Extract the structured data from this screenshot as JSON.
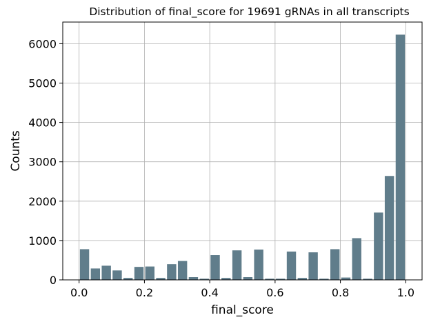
{
  "chart_data": {
    "type": "bar",
    "title": "Distribution of final_score for 19691 gRNAs in all transcripts",
    "xlabel": "final_score",
    "ylabel": "Counts",
    "xlim": [
      -0.05,
      1.05
    ],
    "ylim": [
      0,
      6550
    ],
    "grid": true,
    "bar_color": "#607d8b",
    "bin_width": 0.0333,
    "x_ticks": [
      0.0,
      0.2,
      0.4,
      0.6,
      0.8,
      1.0
    ],
    "x_tick_labels": [
      "0.0",
      "0.2",
      "0.4",
      "0.6",
      "0.8",
      "1.0"
    ],
    "y_ticks": [
      0,
      1000,
      2000,
      3000,
      4000,
      5000,
      6000
    ],
    "y_tick_labels": [
      "0",
      "1000",
      "2000",
      "3000",
      "4000",
      "5000",
      "6000"
    ],
    "bins": [
      0.0,
      0.0333,
      0.0667,
      0.1,
      0.1333,
      0.1667,
      0.2,
      0.2333,
      0.2667,
      0.3,
      0.3333,
      0.3667,
      0.4,
      0.4333,
      0.4667,
      0.5,
      0.5333,
      0.5667,
      0.6,
      0.6333,
      0.6667,
      0.7,
      0.7333,
      0.7667,
      0.8,
      0.8333,
      0.8667,
      0.9,
      0.9333,
      0.9667
    ],
    "values": [
      780,
      290,
      360,
      240,
      50,
      330,
      340,
      50,
      400,
      480,
      70,
      30,
      630,
      50,
      750,
      70,
      770,
      30,
      30,
      720,
      50,
      700,
      30,
      780,
      60,
      1060,
      30,
      1710,
      2640,
      6230
    ]
  }
}
